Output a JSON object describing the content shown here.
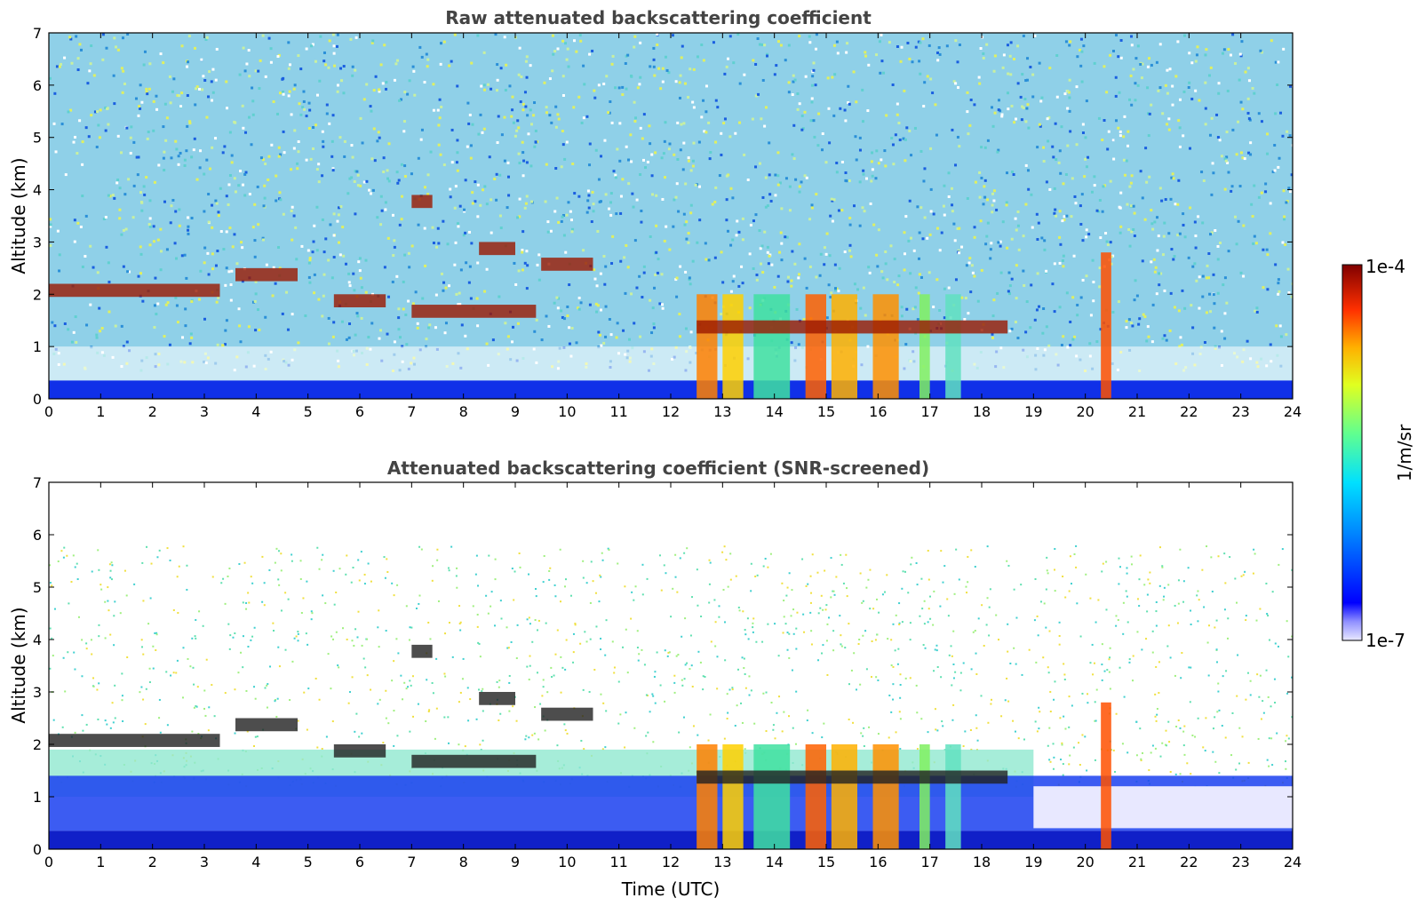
{
  "chart_data": [
    {
      "type": "heatmap",
      "title": "Raw attenuated backscattering coefficient",
      "xlabel": "",
      "ylabel": "Altitude (km)",
      "xlim": [
        0,
        24
      ],
      "ylim": [
        0,
        7
      ],
      "xticks": [
        "0",
        "1",
        "2",
        "3",
        "4",
        "5",
        "6",
        "7",
        "8",
        "9",
        "10",
        "11",
        "12",
        "13",
        "14",
        "15",
        "16",
        "17",
        "18",
        "19",
        "20",
        "21",
        "22",
        "23",
        "24"
      ],
      "yticks": [
        "0",
        "1",
        "2",
        "3",
        "4",
        "5",
        "6",
        "7"
      ],
      "screened": false
    },
    {
      "type": "heatmap",
      "title": "Attenuated backscattering coefficient (SNR-screened)",
      "xlabel": "Time (UTC)",
      "ylabel": "Altitude (km)",
      "xlim": [
        0,
        24
      ],
      "ylim": [
        0,
        7
      ],
      "xticks": [
        "0",
        "1",
        "2",
        "3",
        "4",
        "5",
        "6",
        "7",
        "8",
        "9",
        "10",
        "11",
        "12",
        "13",
        "14",
        "15",
        "16",
        "17",
        "18",
        "19",
        "20",
        "21",
        "22",
        "23",
        "24"
      ],
      "yticks": [
        "0",
        "1",
        "2",
        "3",
        "4",
        "5",
        "6",
        "7"
      ],
      "screened": true
    }
  ],
  "colorbar": {
    "max_label": "1e-4",
    "min_label": "1e-7",
    "unit_label": "1/m/sr",
    "scale": "log",
    "colormap": "jet"
  }
}
